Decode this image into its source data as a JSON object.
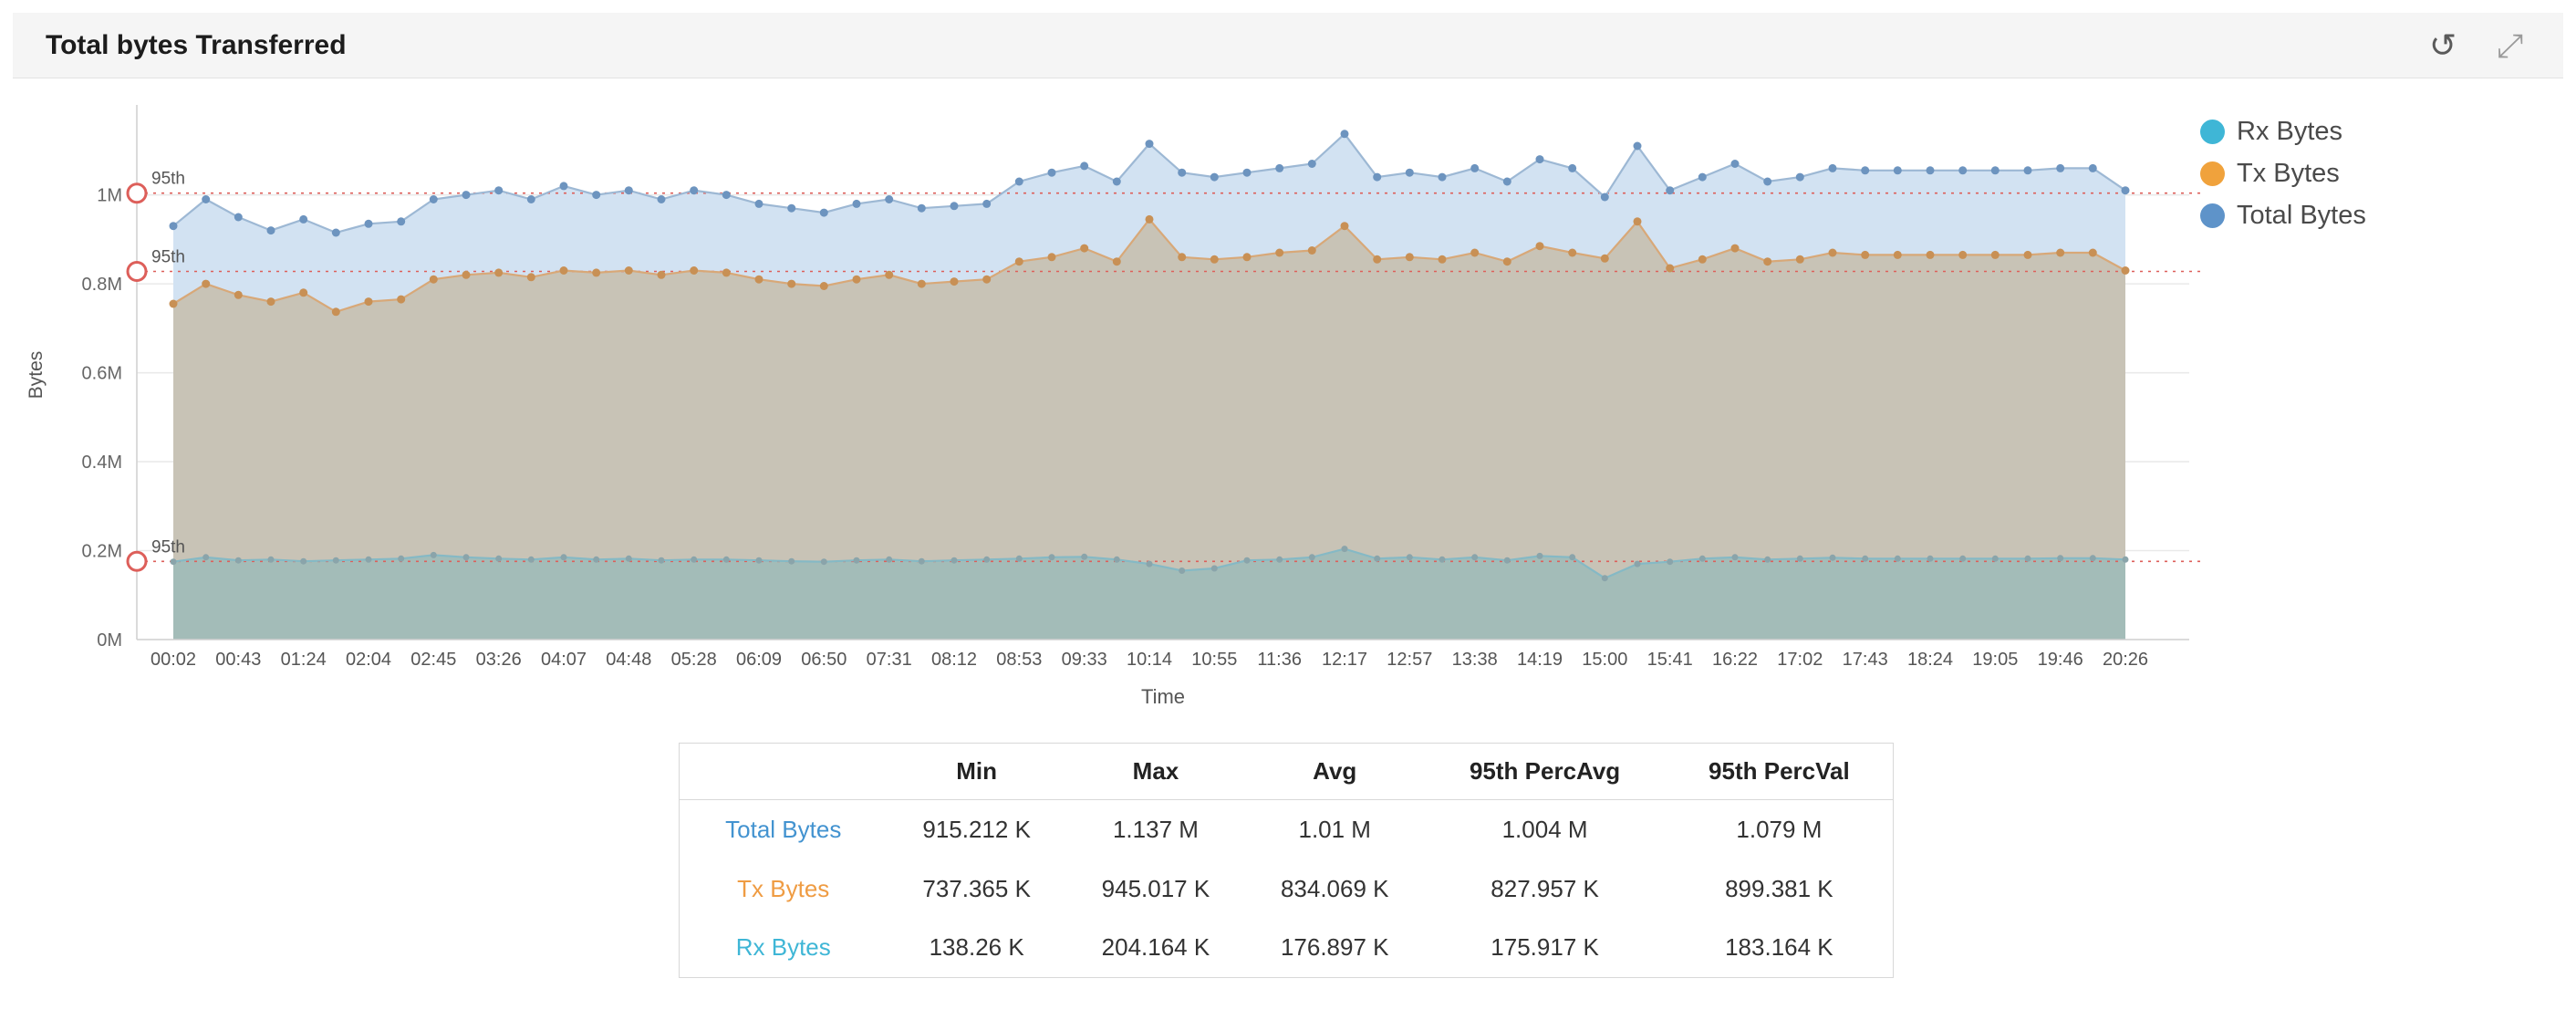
{
  "header": {
    "title": "Total bytes Transferred",
    "icons": [
      {
        "name": "refresh-history-icon",
        "glyph": "↺"
      },
      {
        "name": "expand-icon",
        "glyph": "⤢"
      }
    ]
  },
  "chart_data": {
    "type": "area",
    "title": "Total bytes Transferred",
    "xlabel": "Time",
    "ylabel": "Bytes",
    "value_unit": "M",
    "ylim": [
      0,
      1.19
    ],
    "grid": "horizontal",
    "legend_position": "top-right",
    "yticks": [
      {
        "value": 0,
        "label": "0M"
      },
      {
        "value": 0.2,
        "label": "0.2M"
      },
      {
        "value": 0.4,
        "label": "0.4M"
      },
      {
        "value": 0.6,
        "label": "0.6M"
      },
      {
        "value": 0.8,
        "label": "0.8M"
      },
      {
        "value": 1,
        "label": "1M"
      }
    ],
    "xtick_labels": [
      "00:02",
      "00:43",
      "01:24",
      "02:04",
      "02:45",
      "03:26",
      "04:07",
      "04:48",
      "05:28",
      "06:09",
      "06:50",
      "07:31",
      "08:12",
      "08:53",
      "09:33",
      "10:14",
      "10:55",
      "11:36",
      "12:17",
      "12:57",
      "13:38",
      "14:19",
      "15:00",
      "15:41",
      "16:22",
      "17:02",
      "17:43",
      "18:24",
      "19:05",
      "19:46",
      "20:26"
    ],
    "x": [
      "00:02",
      "00:22",
      "00:43",
      "01:03",
      "01:24",
      "01:44",
      "02:04",
      "02:24",
      "02:45",
      "03:05",
      "03:26",
      "03:46",
      "04:07",
      "04:27",
      "04:48",
      "05:08",
      "05:28",
      "05:48",
      "06:09",
      "06:29",
      "06:50",
      "07:10",
      "07:31",
      "07:51",
      "08:12",
      "08:32",
      "08:53",
      "09:13",
      "09:33",
      "09:53",
      "10:14",
      "10:34",
      "10:55",
      "11:15",
      "11:36",
      "11:56",
      "12:17",
      "12:37",
      "12:57",
      "13:17",
      "13:38",
      "13:58",
      "14:19",
      "14:39",
      "15:00",
      "15:20",
      "15:41",
      "16:01",
      "16:22",
      "16:42",
      "17:02",
      "17:22",
      "17:43",
      "18:03",
      "18:24",
      "18:44",
      "19:05",
      "19:25",
      "19:46",
      "20:06",
      "20:26"
    ],
    "series": [
      {
        "name": "Total Bytes",
        "line_color": "#9db8d4",
        "dot_color": "#6d94bf",
        "area_color": "#d2e2f2",
        "dot_radius": 4.5,
        "values": [
          0.93,
          0.99,
          0.95,
          0.92,
          0.945,
          0.915,
          0.935,
          0.94,
          0.99,
          1.0,
          1.01,
          0.99,
          1.02,
          1.0,
          1.01,
          0.99,
          1.01,
          1.0,
          0.98,
          0.97,
          0.96,
          0.98,
          0.99,
          0.97,
          0.975,
          0.98,
          1.03,
          1.05,
          1.065,
          1.03,
          1.115,
          1.05,
          1.04,
          1.05,
          1.06,
          1.07,
          1.137,
          1.04,
          1.05,
          1.04,
          1.06,
          1.03,
          1.08,
          1.06,
          0.995,
          1.11,
          1.01,
          1.04,
          1.07,
          1.03,
          1.04,
          1.06,
          1.055,
          1.055,
          1.055,
          1.055,
          1.055,
          1.055,
          1.06,
          1.06,
          1.01
        ]
      },
      {
        "name": "Tx Bytes",
        "line_color": "#d8a878",
        "dot_color": "#c89055",
        "area_color": "#c8c3b6",
        "dot_radius": 4.5,
        "values": [
          0.755,
          0.8,
          0.775,
          0.76,
          0.78,
          0.737,
          0.76,
          0.765,
          0.81,
          0.82,
          0.825,
          0.815,
          0.83,
          0.825,
          0.83,
          0.82,
          0.83,
          0.825,
          0.81,
          0.8,
          0.795,
          0.81,
          0.82,
          0.8,
          0.805,
          0.81,
          0.85,
          0.86,
          0.88,
          0.85,
          0.945,
          0.86,
          0.855,
          0.86,
          0.87,
          0.875,
          0.93,
          0.855,
          0.86,
          0.855,
          0.87,
          0.85,
          0.885,
          0.87,
          0.857,
          0.94,
          0.835,
          0.855,
          0.88,
          0.85,
          0.855,
          0.87,
          0.865,
          0.865,
          0.865,
          0.865,
          0.865,
          0.865,
          0.87,
          0.87,
          0.83
        ]
      },
      {
        "name": "Rx Bytes",
        "line_color": "#85b9c5",
        "dot_color": "#8aa4aa",
        "area_color": "#a3bcb8",
        "dot_radius": 3.5,
        "values": [
          0.175,
          0.185,
          0.178,
          0.18,
          0.176,
          0.178,
          0.18,
          0.182,
          0.19,
          0.185,
          0.182,
          0.18,
          0.185,
          0.18,
          0.182,
          0.178,
          0.18,
          0.18,
          0.178,
          0.176,
          0.175,
          0.178,
          0.18,
          0.176,
          0.178,
          0.18,
          0.182,
          0.185,
          0.186,
          0.18,
          0.17,
          0.155,
          0.16,
          0.178,
          0.18,
          0.185,
          0.204,
          0.182,
          0.185,
          0.18,
          0.185,
          0.178,
          0.188,
          0.185,
          0.138,
          0.17,
          0.175,
          0.182,
          0.185,
          0.18,
          0.182,
          0.184,
          0.182,
          0.182,
          0.182,
          0.182,
          0.182,
          0.182,
          0.183,
          0.183,
          0.18
        ]
      }
    ],
    "percentile_markers": [
      {
        "label": "95th",
        "value": 1.004
      },
      {
        "label": "95th",
        "value": 0.827957
      },
      {
        "label": "95th",
        "value": 0.175917
      }
    ]
  },
  "legend": {
    "items": [
      {
        "label": "Rx Bytes",
        "color": "#3fb6d6"
      },
      {
        "label": "Tx Bytes",
        "color": "#f0a23c"
      },
      {
        "label": "Total Bytes",
        "color": "#5e93c9"
      }
    ]
  },
  "table": {
    "columns": [
      "",
      "Min",
      "Max",
      "Avg",
      "95th PercAvg",
      "95th PercVal"
    ],
    "rows": [
      {
        "label": "Total Bytes",
        "color": "#4393d0",
        "values": [
          "915.212 K",
          "1.137 M",
          "1.01 M",
          "1.004 M",
          "1.079 M"
        ]
      },
      {
        "label": "Tx Bytes",
        "color": "#ef9c43",
        "values": [
          "737.365 K",
          "945.017 K",
          "834.069 K",
          "827.957 K",
          "899.381 K"
        ]
      },
      {
        "label": "Rx Bytes",
        "color": "#3fb6d6",
        "values": [
          "138.26 K",
          "204.164 K",
          "176.897 K",
          "175.917 K",
          "183.164 K"
        ]
      }
    ]
  }
}
